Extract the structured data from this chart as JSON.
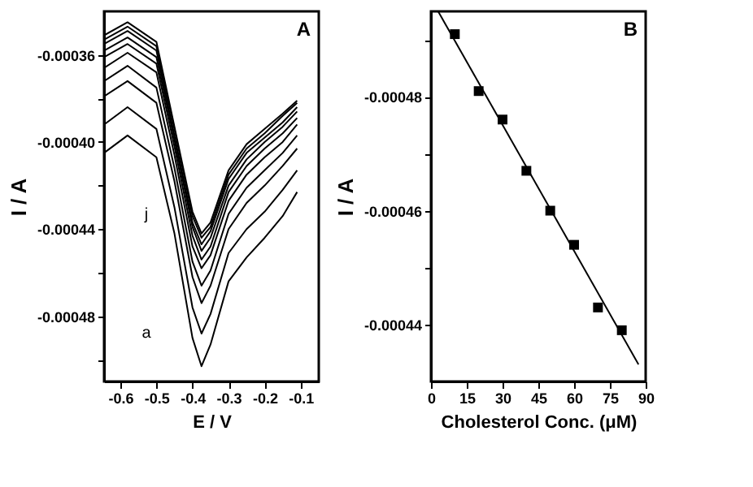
{
  "chart_data": [
    {
      "type": "line",
      "xlabel": "E / V",
      "ylabel": "I / A",
      "grid": false,
      "x": [
        -0.645,
        -0.58,
        -0.5,
        -0.45,
        -0.4,
        -0.375,
        -0.35,
        -0.3,
        -0.25,
        -0.2,
        -0.15,
        -0.11
      ],
      "xlim": [
        -0.645,
        -0.05
      ],
      "xticks": [
        -0.6,
        -0.5,
        -0.4,
        -0.3,
        -0.2,
        -0.1
      ],
      "ylim": [
        -0.00051,
        -0.00034
      ],
      "yticks": [
        -0.00036,
        {
          "value": -0.00038,
          "label": null
        },
        {
          "value": -0.0004,
          "label": "-0.00040"
        },
        {
          "value": -0.00042,
          "label": null
        },
        -0.00044,
        {
          "value": -0.00046,
          "label": null
        },
        -0.00048,
        {
          "value": -0.0005,
          "label": null
        }
      ],
      "series": [
        {
          "color": "#000000",
          "values": [
            -0.000405,
            -0.000397,
            -0.000407,
            -0.000442,
            -0.00049,
            -0.000503,
            -0.000493,
            -0.000464,
            -0.000453,
            -0.000444,
            -0.000434,
            -0.000423
          ]
        },
        {
          "color": "#000000",
          "values": [
            -0.000392,
            -0.000384,
            -0.000394,
            -0.00043,
            -0.000476,
            -0.000488,
            -0.000479,
            -0.000451,
            -0.00044,
            -0.000432,
            -0.000422,
            -0.000413
          ]
        },
        {
          "color": "#000000",
          "values": [
            -0.000379,
            -0.000372,
            -0.000382,
            -0.000418,
            -0.000462,
            -0.000474,
            -0.000466,
            -0.00044,
            -0.000428,
            -0.00042,
            -0.000411,
            -0.000403
          ]
        },
        {
          "color": "#000000",
          "values": [
            -0.000372,
            -0.000365,
            -0.000375,
            -0.000412,
            -0.000455,
            -0.000466,
            -0.000459,
            -0.000433,
            -0.000421,
            -0.000413,
            -0.000405,
            -0.000397
          ]
        },
        {
          "color": "#000000",
          "values": [
            -0.000366,
            -0.000359,
            -0.000368,
            -0.000406,
            -0.000448,
            -0.000458,
            -0.000452,
            -0.000427,
            -0.000415,
            -0.000407,
            -0.0004,
            -0.000392
          ]
        },
        {
          "color": "#000000",
          "values": [
            -0.000361,
            -0.000355,
            -0.000364,
            -0.000402,
            -0.000443,
            -0.000454,
            -0.000448,
            -0.000423,
            -0.000411,
            -0.000403,
            -0.000396,
            -0.000389
          ]
        },
        {
          "color": "#000000",
          "values": [
            -0.000358,
            -0.000352,
            -0.000361,
            -0.000399,
            -0.000439,
            -0.00045,
            -0.000444,
            -0.00042,
            -0.000408,
            -0.0004,
            -0.000393,
            -0.000386
          ]
        },
        {
          "color": "#000000",
          "values": [
            -0.000355,
            -0.000349,
            -0.000358,
            -0.000397,
            -0.000437,
            -0.000447,
            -0.000441,
            -0.000417,
            -0.000405,
            -0.000398,
            -0.000391,
            -0.000384
          ]
        },
        {
          "color": "#000000",
          "values": [
            -0.000353,
            -0.000347,
            -0.000356,
            -0.000394,
            -0.000434,
            -0.000444,
            -0.000439,
            -0.000415,
            -0.000403,
            -0.000396,
            -0.000388,
            -0.000382
          ]
        },
        {
          "color": "#000000",
          "values": [
            -0.000351,
            -0.000345,
            -0.000354,
            -0.000393,
            -0.000432,
            -0.000442,
            -0.000437,
            -0.000413,
            -0.000401,
            -0.000394,
            -0.000387,
            -0.000381
          ]
        }
      ],
      "annotations": [
        "A",
        "j",
        "a"
      ]
    },
    {
      "type": "scatter",
      "xlabel": "Cholesterol Conc. (μM)",
      "ylabel": "I / A",
      "grid": false,
      "xlim": [
        0,
        90
      ],
      "xticks": [
        0,
        15,
        30,
        45,
        60,
        75,
        90
      ],
      "ylim": [
        -0.00043,
        -0.000495
      ],
      "yticks": [
        {
          "value": -0.00049,
          "label": null
        },
        -0.00048,
        {
          "value": -0.00047,
          "label": null
        },
        -0.00046,
        {
          "value": -0.00045,
          "label": null
        },
        -0.00044
      ],
      "series": [
        {
          "type": "scatter",
          "marker": "square",
          "color": "#000000",
          "x": [
            10,
            20,
            30,
            40,
            50,
            60,
            70,
            80
          ],
          "values": [
            -0.000491,
            -0.000481,
            -0.000476,
            -0.000467,
            -0.00046,
            -0.000454,
            -0.000443,
            -0.000439
          ]
        },
        {
          "type": "line",
          "color": "#000000",
          "x": [
            3,
            87
          ],
          "values": [
            -0.000495,
            -0.000433
          ]
        }
      ],
      "annotations": [
        "B"
      ]
    }
  ]
}
